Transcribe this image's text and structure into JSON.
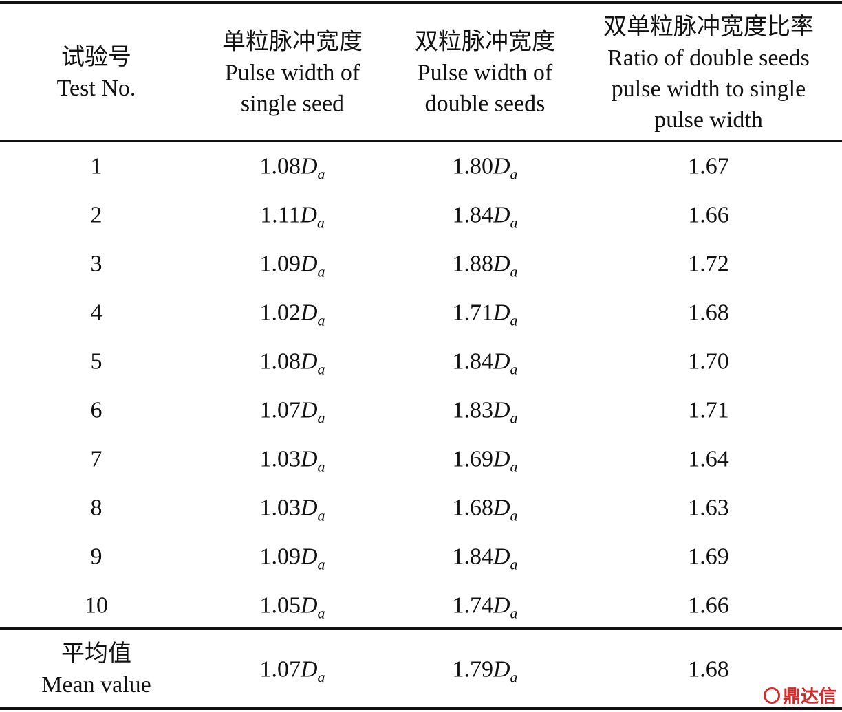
{
  "table": {
    "header": [
      [
        "试验号",
        "Test No."
      ],
      [
        "单粒脉冲宽度",
        "Pulse width of",
        "single seed"
      ],
      [
        "双粒脉冲宽度",
        "Pulse width of",
        "double seeds"
      ],
      [
        "双单粒脉冲宽度比率",
        "Ratio of double seeds",
        "pulse width to single",
        "pulse width"
      ]
    ],
    "rows": [
      [
        "1",
        {
          "number": "1.08",
          "symbol": "D",
          "subscript": "a"
        },
        {
          "number": "1.80",
          "symbol": "D",
          "subscript": "a"
        },
        "1.67"
      ],
      [
        "2",
        {
          "number": "1.11",
          "symbol": "D",
          "subscript": "a"
        },
        {
          "number": "1.84",
          "symbol": "D",
          "subscript": "a"
        },
        "1.66"
      ],
      [
        "3",
        {
          "number": "1.09",
          "symbol": "D",
          "subscript": "a"
        },
        {
          "number": "1.88",
          "symbol": "D",
          "subscript": "a"
        },
        "1.72"
      ],
      [
        "4",
        {
          "number": "1.02",
          "symbol": "D",
          "subscript": "a"
        },
        {
          "number": "1.71",
          "symbol": "D",
          "subscript": "a"
        },
        "1.68"
      ],
      [
        "5",
        {
          "number": "1.08",
          "symbol": "D",
          "subscript": "a"
        },
        {
          "number": "1.84",
          "symbol": "D",
          "subscript": "a"
        },
        "1.70"
      ],
      [
        "6",
        {
          "number": "1.07",
          "symbol": "D",
          "subscript": "a"
        },
        {
          "number": "1.83",
          "symbol": "D",
          "subscript": "a"
        },
        "1.71"
      ],
      [
        "7",
        {
          "number": "1.03",
          "symbol": "D",
          "subscript": "a"
        },
        {
          "number": "1.69",
          "symbol": "D",
          "subscript": "a"
        },
        "1.64"
      ],
      [
        "8",
        {
          "number": "1.03",
          "symbol": "D",
          "subscript": "a"
        },
        {
          "number": "1.68",
          "symbol": "D",
          "subscript": "a"
        },
        "1.63"
      ],
      [
        "9",
        {
          "number": "1.09",
          "symbol": "D",
          "subscript": "a"
        },
        {
          "number": "1.84",
          "symbol": "D",
          "subscript": "a"
        },
        "1.69"
      ],
      [
        "10",
        {
          "number": "1.05",
          "symbol": "D",
          "subscript": "a"
        },
        {
          "number": "1.74",
          "symbol": "D",
          "subscript": "a"
        },
        "1.66"
      ]
    ],
    "mean_row": [
      [
        "平均值",
        "Mean value"
      ],
      {
        "number": "1.07",
        "symbol": "D",
        "subscript": "a"
      },
      {
        "number": "1.79",
        "symbol": "D",
        "subscript": "a"
      },
      "1.68"
    ]
  },
  "watermark": "鼎达信"
}
